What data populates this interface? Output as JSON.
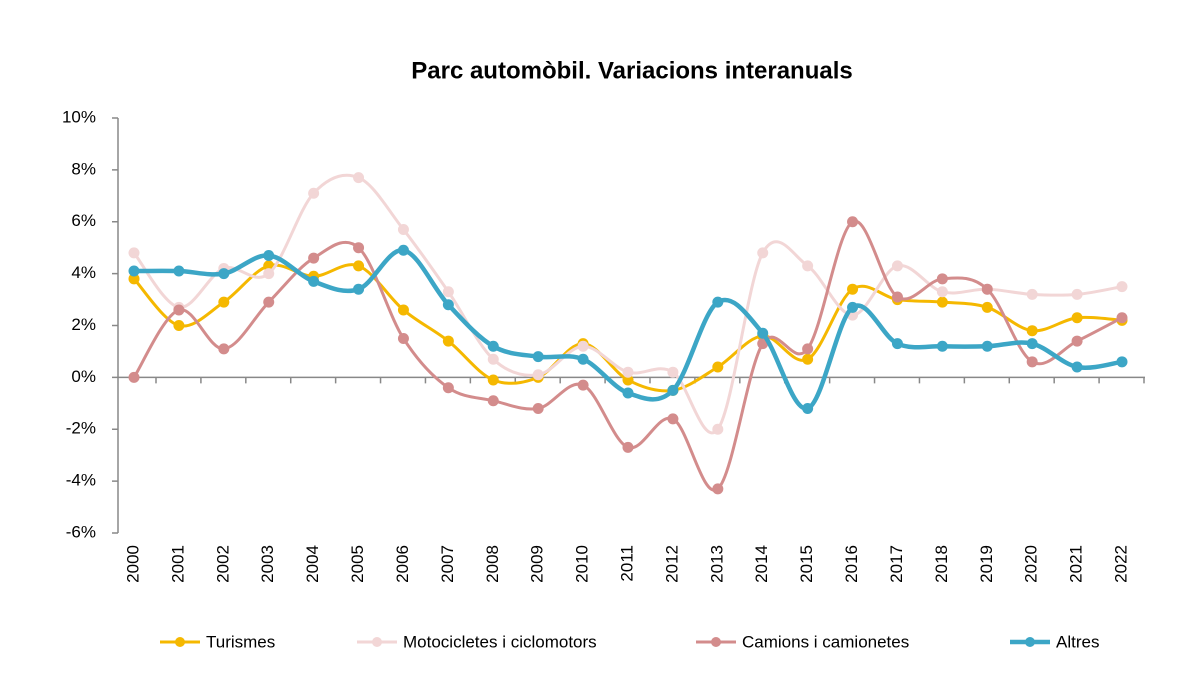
{
  "chart_data": {
    "type": "line",
    "title": "Parc automòbil. Variacions interanuals",
    "categories": [
      "2000",
      "2001",
      "2002",
      "2003",
      "2004",
      "2005",
      "2006",
      "2007",
      "2008",
      "2009",
      "2010",
      "2011",
      "2012",
      "2013",
      "2014",
      "2015",
      "2016",
      "2017",
      "2018",
      "2019",
      "2020",
      "2021",
      "2022"
    ],
    "series": [
      {
        "name": "Turismes",
        "color": "#f5b800",
        "values": [
          3.8,
          2.0,
          2.9,
          4.3,
          3.9,
          4.3,
          2.6,
          1.4,
          -0.1,
          0.0,
          1.3,
          -0.1,
          -0.5,
          0.4,
          1.6,
          0.7,
          3.4,
          3.0,
          2.9,
          2.7,
          1.8,
          2.3,
          2.2
        ]
      },
      {
        "name": "Motocicletes i ciclomotors",
        "color": "#f2d6d6",
        "values": [
          4.8,
          2.7,
          4.2,
          4.0,
          7.1,
          7.7,
          5.7,
          3.3,
          0.7,
          0.1,
          1.2,
          0.2,
          0.2,
          -2.0,
          4.8,
          4.3,
          2.4,
          4.3,
          3.3,
          3.4,
          3.2,
          3.2,
          3.5
        ]
      },
      {
        "name": "Camions i camionetes",
        "color": "#d38c8c",
        "values": [
          0.0,
          2.6,
          1.1,
          2.9,
          4.6,
          5.0,
          1.5,
          -0.4,
          -0.9,
          -1.2,
          -0.3,
          -2.7,
          -1.6,
          -4.3,
          1.3,
          1.1,
          6.0,
          3.1,
          3.8,
          3.4,
          0.6,
          1.4,
          2.3
        ]
      },
      {
        "name": "Altres",
        "color": "#3ca6c6",
        "values": [
          4.1,
          4.1,
          4.0,
          4.7,
          3.7,
          3.4,
          4.9,
          2.8,
          1.2,
          0.8,
          0.7,
          -0.6,
          -0.5,
          2.9,
          1.7,
          -1.2,
          2.7,
          1.3,
          1.2,
          1.2,
          1.3,
          0.4,
          0.6
        ]
      }
    ],
    "ylim": [
      -6,
      10
    ],
    "yticks": [
      {
        "value": -6,
        "label": "-6%"
      },
      {
        "value": -4,
        "label": "-4%"
      },
      {
        "value": -2,
        "label": "-2%"
      },
      {
        "value": 0,
        "label": "0%"
      },
      {
        "value": 2,
        "label": "2%"
      },
      {
        "value": 4,
        "label": "4%"
      },
      {
        "value": 6,
        "label": "6%"
      },
      {
        "value": 8,
        "label": "8%"
      },
      {
        "value": 10,
        "label": "10%"
      }
    ],
    "grid": false,
    "legend": "bottom"
  }
}
